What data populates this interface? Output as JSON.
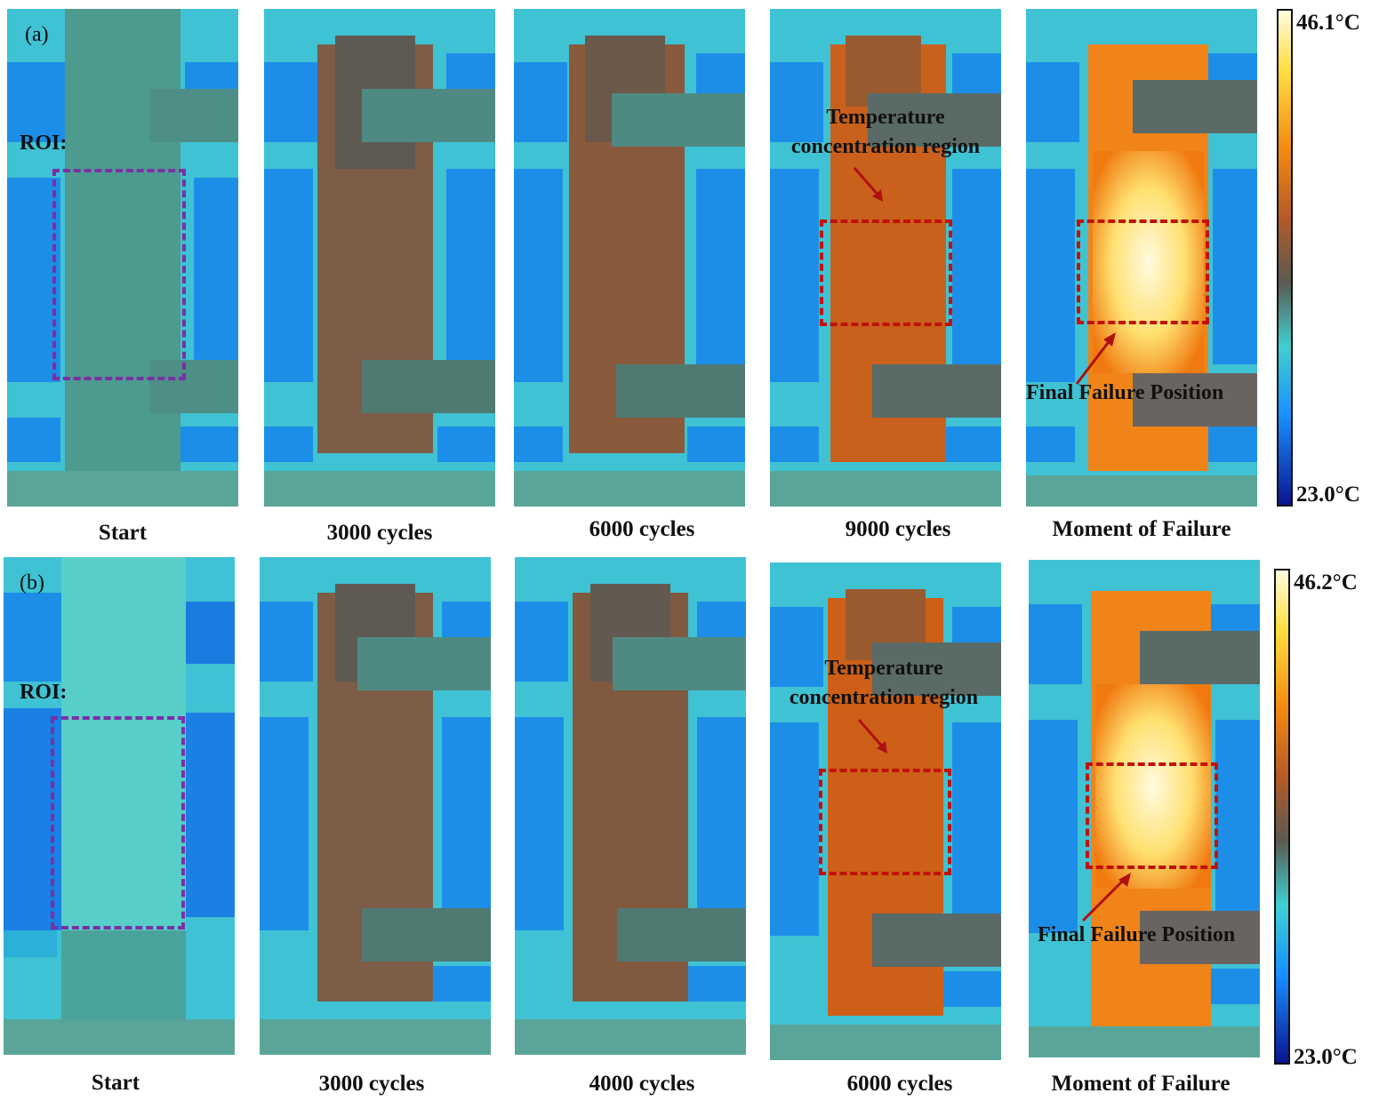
{
  "row_a": {
    "tag": "(a)",
    "roi_label": "ROI:",
    "captions": [
      "Start",
      "3000 cycles",
      "6000 cycles",
      "9000 cycles",
      "Moment of Failure"
    ],
    "annotation_region": "Temperature concentration region",
    "annotation_region_l1": "Temperature",
    "annotation_region_l2": "concentration region",
    "annotation_failure": "Final Failure Position",
    "colorbar": {
      "max": "46.1°C",
      "min": "23.0°C"
    }
  },
  "row_b": {
    "tag": "(b)",
    "roi_label": "ROI:",
    "captions": [
      "Start",
      "3000 cycles",
      "4000 cycles",
      "6000 cycles",
      "Moment of Failure"
    ],
    "annotation_region_l1": "Temperature",
    "annotation_region_l2": "concentration region",
    "annotation_failure": "Final Failure Position",
    "colorbar": {
      "max": "46.2°C",
      "min": "23.0°C"
    }
  },
  "colors": {
    "roi_box": "#7b2fa6",
    "region_box": "#c0120a",
    "arrow": "#b01010",
    "colormap": [
      "#fffbe0",
      "#ffcc30",
      "#f07a10",
      "#6b5040",
      "#40c8c8",
      "#1a8cff",
      "#0a1a90"
    ]
  }
}
